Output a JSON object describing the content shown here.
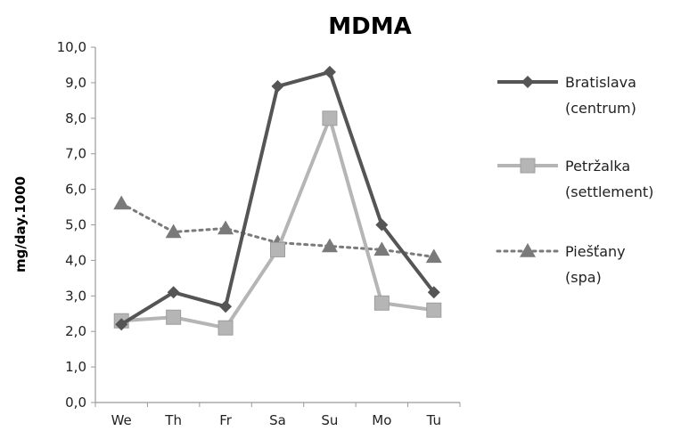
{
  "chart_data": {
    "type": "line",
    "title": "MDMA",
    "xlabel": "",
    "ylabel": "mg/day.1000",
    "ylim": [
      0,
      10
    ],
    "y_ticks": [
      "0,0",
      "1,0",
      "2,0",
      "3,0",
      "4,0",
      "5,0",
      "6,0",
      "7,0",
      "8,0",
      "9,0",
      "10,0"
    ],
    "grid": false,
    "legend_position": "right",
    "categories": [
      "We",
      "Th",
      "Fr",
      "Sa",
      "Su",
      "Mo",
      "Tu"
    ],
    "series": [
      {
        "name": "Bratislava",
        "name_line2": "(centrum)",
        "values": [
          2.2,
          3.1,
          2.7,
          8.9,
          9.3,
          5.0,
          3.1
        ],
        "color": "#555555",
        "line_style": "solid",
        "marker": "diamond"
      },
      {
        "name": "Petržalka",
        "name_line2": "(settlement)",
        "values": [
          2.3,
          2.4,
          2.1,
          4.3,
          8.0,
          2.8,
          2.6
        ],
        "color": "#b5b5b5",
        "line_style": "solid",
        "marker": "square"
      },
      {
        "name": "Piešťany",
        "name_line2": "(spa)",
        "values": [
          5.6,
          4.8,
          4.9,
          4.5,
          4.4,
          4.3,
          4.1
        ],
        "color": "#7a7a7a",
        "line_style": "dotted",
        "marker": "triangle"
      }
    ]
  }
}
